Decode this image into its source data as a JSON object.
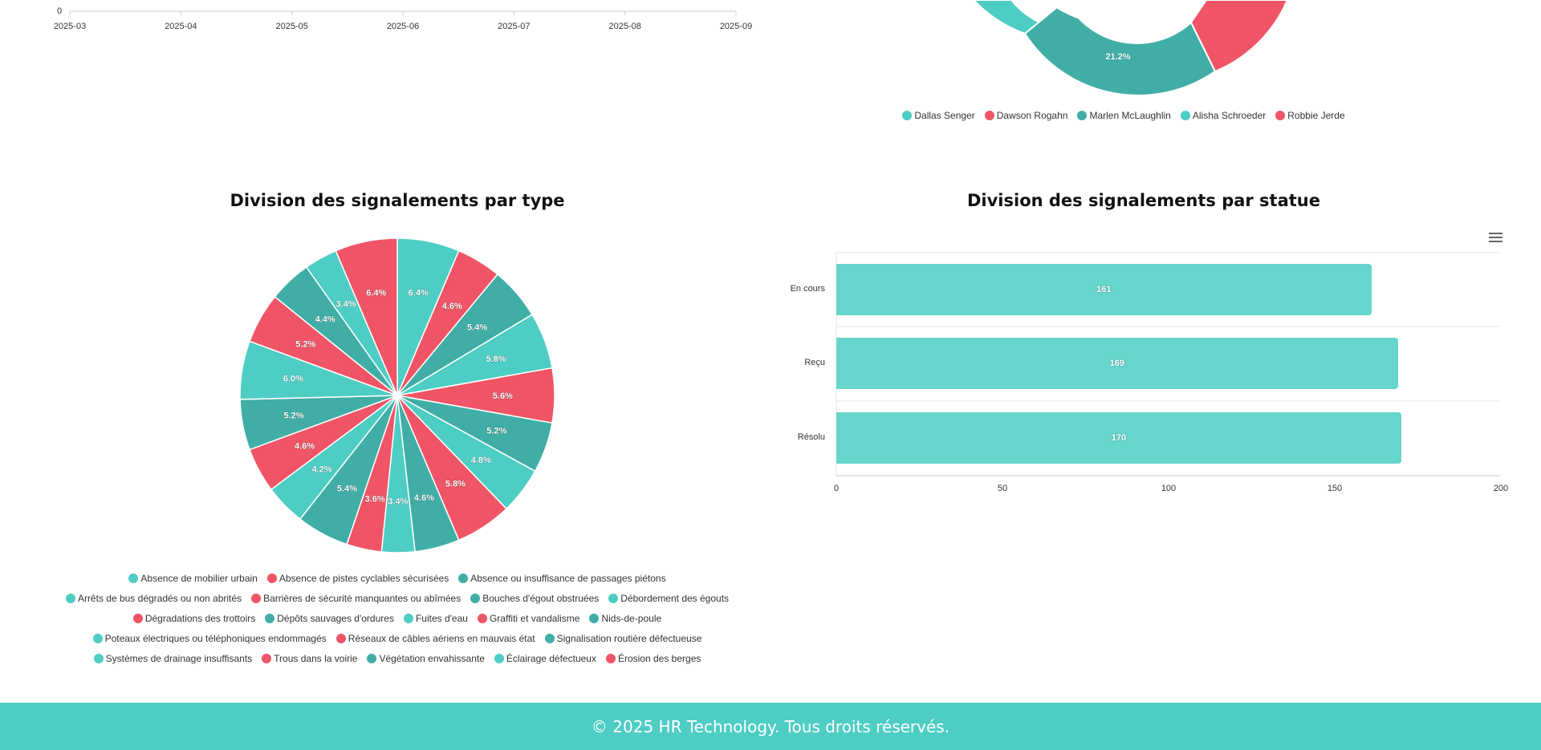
{
  "colors": {
    "teal": "#4ecdc4",
    "red": "#ef5566",
    "dark_teal": "#40aea6",
    "bar": "#66d5cb",
    "footer": "#4ecdc4"
  },
  "line_chart": {
    "y_tick": "0",
    "x_ticks": [
      "2025-03",
      "2025-04",
      "2025-05",
      "2025-06",
      "2025-07",
      "2025-08",
      "2025-09"
    ]
  },
  "donut_chart": {
    "visible_label": "21.2%",
    "legend": [
      {
        "name": "Dallas Senger",
        "color": "#4ecdc4"
      },
      {
        "name": "Dawson Rogahn",
        "color": "#ef5566"
      },
      {
        "name": "Marlen McLaughlin",
        "color": "#40aea6"
      },
      {
        "name": "Alisha Schroeder",
        "color": "#4ecdc4"
      },
      {
        "name": "Robbie Jerde",
        "color": "#ef5566"
      }
    ]
  },
  "chart_data": [
    {
      "type": "pie",
      "title": "Division des signalements par type",
      "categories": [
        "Absence de mobilier urbain",
        "Absence de pistes cyclables sécurisées",
        "Absence ou insuffisance de passages piétons",
        "Arrêts de bus dégradés ou non abrités",
        "Barrières de sécurité manquantes ou abîmées",
        "Bouches d'égout obstruées",
        "Débordement des égouts",
        "Dégradations des trottoirs",
        "Dépôts sauvages d'ordures",
        "Fuites d'eau",
        "Graffiti et vandalisme",
        "Nids-de-poule",
        "Poteaux électriques ou téléphoniques endommagés",
        "Réseaux de câbles aériens en mauvais état",
        "Signalisation routière défectueuse",
        "Systèmes de drainage insuffisants",
        "Trous dans la voirie",
        "Végétation envahissante",
        "Éclairage défectueux",
        "Érosion des berges"
      ],
      "values": [
        6.4,
        4.6,
        5.4,
        5.8,
        5.6,
        5.2,
        4.8,
        5.8,
        4.6,
        3.4,
        3.6,
        5.4,
        4.2,
        4.6,
        5.2,
        6.0,
        5.2,
        4.4,
        3.4,
        6.4
      ],
      "value_labels": [
        "6.4%",
        "4.6%",
        "5.4%",
        "5.8%",
        "5.6%",
        "5.2%",
        "4.8%",
        "5.8%",
        "4.6%",
        "3.4%",
        "3.6%",
        "5.4%",
        "4.2%",
        "4.6%",
        "5.2%",
        "6.0%",
        "5.2%",
        "4.4%",
        "3.4%",
        "6.4%"
      ],
      "colors": [
        "#4ecdc4",
        "#ef5566",
        "#40aea6",
        "#4ecdc4",
        "#ef5566",
        "#40aea6",
        "#4ecdc4",
        "#ef5566",
        "#40aea6",
        "#4ecdc4",
        "#ef5566",
        "#40aea6",
        "#4ecdc4",
        "#ef5566",
        "#40aea6",
        "#4ecdc4",
        "#ef5566",
        "#40aea6",
        "#4ecdc4",
        "#ef5566"
      ],
      "legend_rows": [
        [
          0,
          1,
          2
        ],
        [
          3,
          4,
          5,
          6
        ],
        [
          7,
          8,
          9,
          10,
          11
        ],
        [
          12,
          13,
          14
        ],
        [
          15,
          16,
          17,
          18,
          19
        ]
      ]
    },
    {
      "type": "bar",
      "orientation": "horizontal",
      "title": "Division des signalements par statue",
      "categories": [
        "En cours",
        "Reçu",
        "Résolu"
      ],
      "values": [
        161,
        169,
        170
      ],
      "value_labels": [
        "161",
        "169",
        "170"
      ],
      "x_ticks": [
        "0",
        "50",
        "100",
        "150",
        "200"
      ],
      "xlim": [
        0,
        200
      ],
      "grid": true
    }
  ],
  "footer": {
    "text": "© 2025 HR Technology. Tous droits réservés."
  }
}
